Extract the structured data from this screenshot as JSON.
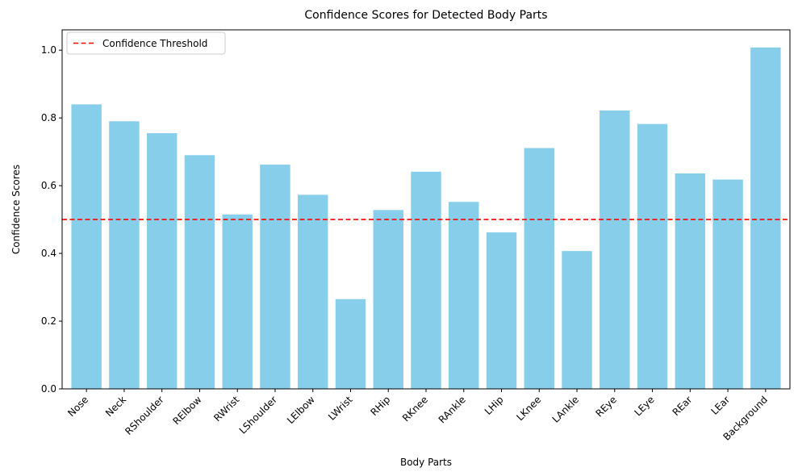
{
  "chart_data": {
    "type": "bar",
    "title": "Confidence Scores for Detected Body Parts",
    "xlabel": "Body Parts",
    "ylabel": "Confidence Scores",
    "categories": [
      "Nose",
      "Neck",
      "RShoulder",
      "RElbow",
      "RWrist",
      "LShoulder",
      "LElbow",
      "LWrist",
      "RHip",
      "RKnee",
      "RAnkle",
      "LHip",
      "LKnee",
      "LAnkle",
      "REye",
      "LEye",
      "REar",
      "LEar",
      "Background"
    ],
    "values": [
      0.84,
      0.79,
      0.755,
      0.69,
      0.515,
      0.662,
      0.573,
      0.265,
      0.528,
      0.641,
      0.552,
      0.462,
      0.711,
      0.407,
      0.822,
      0.782,
      0.636,
      0.618,
      1.008
    ],
    "ylim": [
      0,
      1.06
    ],
    "yticks": [
      "0.0",
      "0.2",
      "0.4",
      "0.6",
      "0.8",
      "1.0"
    ],
    "threshold": {
      "value": 0.5,
      "label": "Confidence Threshold",
      "color": "#ff0000"
    },
    "bar_color": "#87ceeb",
    "legend_position": "top-left",
    "grid": false
  }
}
